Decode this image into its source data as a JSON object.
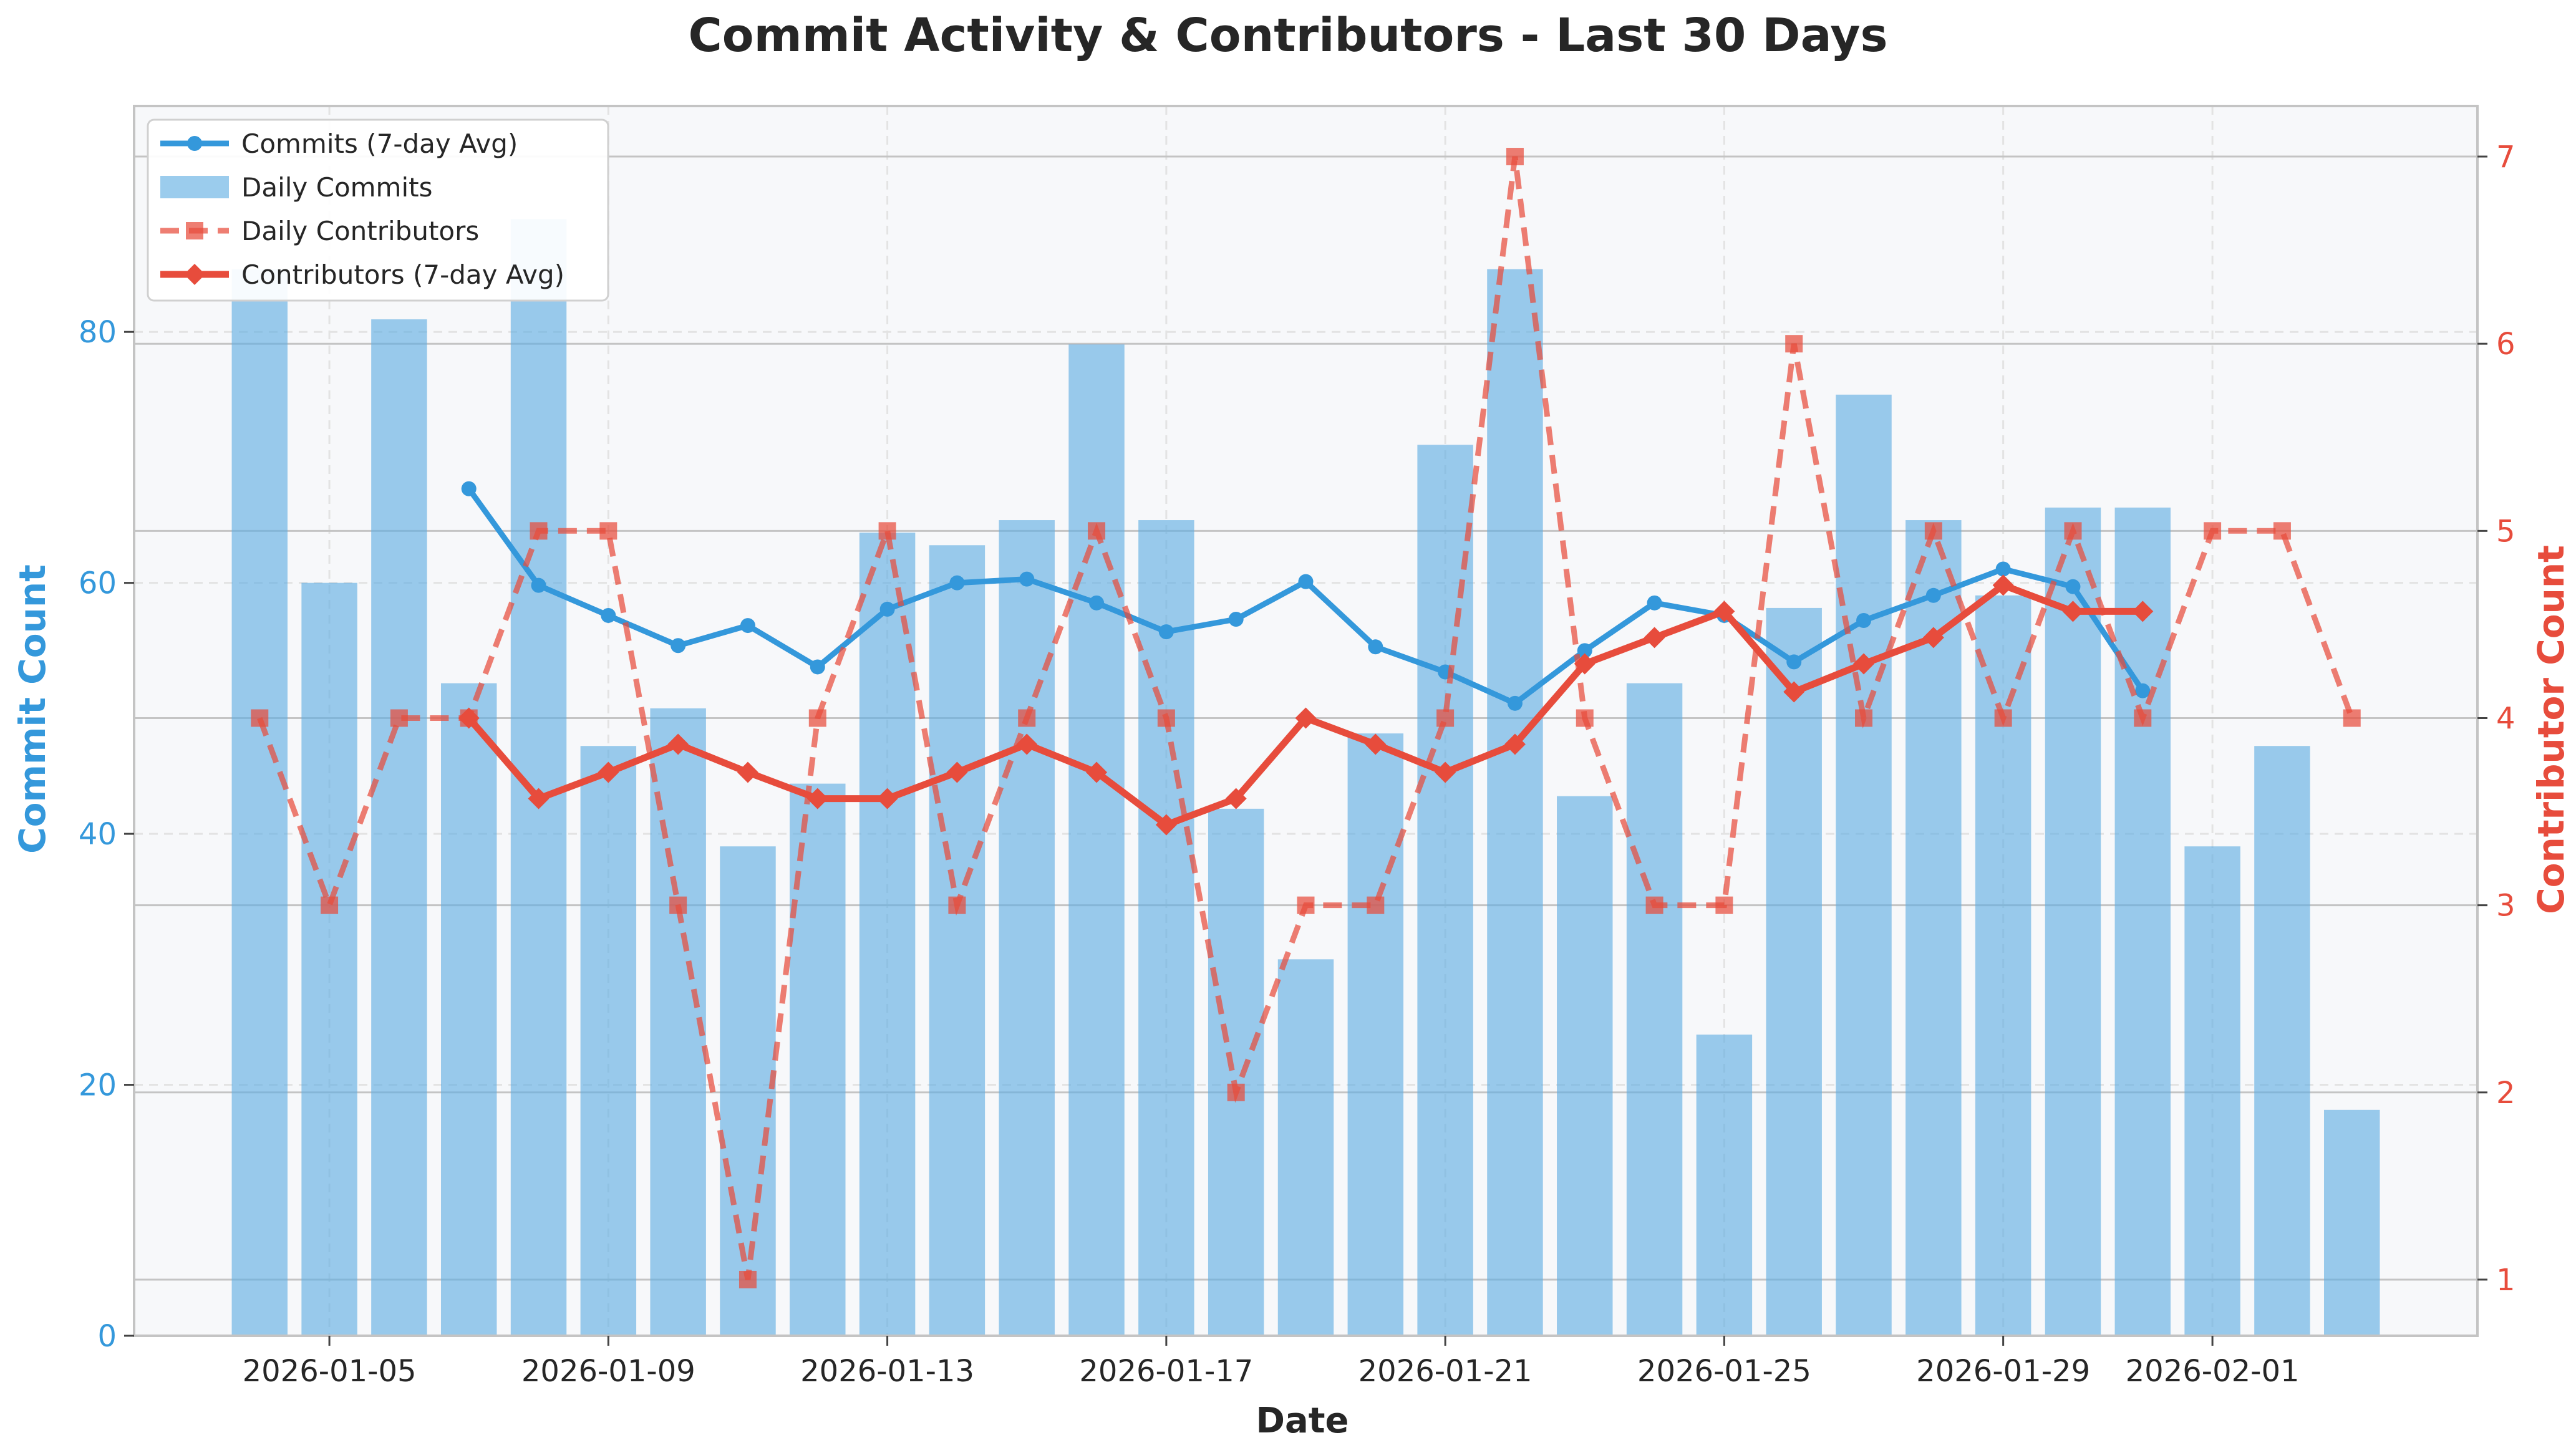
{
  "chart_data": {
    "type": "bar+line",
    "title": "Commit Activity & Contributors - Last 30 Days",
    "xlabel": "Date",
    "ylabel_left": "Commit Count",
    "ylabel_right": "Contributor Count",
    "ylim_left": [
      0,
      98
    ],
    "ylim_right": [
      0.7,
      7.27
    ],
    "y_ticks_left": [
      0,
      20,
      40,
      60,
      80
    ],
    "y_ticks_right": [
      1,
      2,
      3,
      4,
      5,
      6,
      7
    ],
    "x_tick_labels": [
      "2026-01-05",
      "2026-01-09",
      "2026-01-13",
      "2026-01-17",
      "2026-01-21",
      "2026-01-25",
      "2026-01-29",
      "2026-02-01"
    ],
    "x_tick_positions": [
      1,
      5,
      9,
      13,
      17,
      21,
      25,
      28
    ],
    "grid": true,
    "legend_position": "top-left",
    "dates": [
      "2026-01-04",
      "2026-01-05",
      "2026-01-06",
      "2026-01-07",
      "2026-01-08",
      "2026-01-09",
      "2026-01-10",
      "2026-01-11",
      "2026-01-12",
      "2026-01-13",
      "2026-01-14",
      "2026-01-15",
      "2026-01-16",
      "2026-01-17",
      "2026-01-18",
      "2026-01-19",
      "2026-01-20",
      "2026-01-21",
      "2026-01-22",
      "2026-01-23",
      "2026-01-24",
      "2026-01-25",
      "2026-01-26",
      "2026-01-27",
      "2026-01-28",
      "2026-01-29",
      "2026-01-30",
      "2026-01-31",
      "2026-02-01",
      "2026-02-02",
      "2026-02-03"
    ],
    "series": [
      {
        "name": "Daily Commits",
        "type": "bar",
        "axis": "left",
        "color": "#5dade2",
        "values": [
          85,
          60,
          81,
          52,
          89,
          47,
          50,
          39,
          44,
          64,
          63,
          65,
          79,
          65,
          42,
          30,
          48,
          71,
          85,
          43,
          52,
          24,
          58,
          75,
          65,
          59,
          66,
          66,
          39,
          47,
          18
        ]
      },
      {
        "name": "Commits (7-day Avg)",
        "type": "line",
        "axis": "left",
        "color": "#3498db",
        "values": [
          null,
          null,
          null,
          67.5,
          59.8,
          57.4,
          55.0,
          56.6,
          53.3,
          57.9,
          60.0,
          60.3,
          58.4,
          56.1,
          57.1,
          60.1,
          54.9,
          52.9,
          50.4,
          54.6,
          58.4,
          57.4,
          53.7,
          57.0,
          59.0,
          61.1,
          59.7,
          51.4,
          null,
          null,
          null
        ]
      },
      {
        "name": "Daily Contributors",
        "type": "line",
        "axis": "right",
        "color": "#e74c3c",
        "values": [
          4,
          3,
          4,
          4,
          5,
          5,
          3,
          1,
          4,
          5,
          3,
          4,
          5,
          4,
          2,
          3,
          3,
          4,
          7,
          4,
          3,
          3,
          6,
          4,
          5,
          4,
          5,
          4,
          5,
          5,
          4
        ]
      },
      {
        "name": "Contributors (7-day Avg)",
        "type": "line",
        "axis": "right",
        "color": "#e74c3c",
        "values": [
          null,
          null,
          null,
          4.0,
          3.57,
          3.71,
          3.86,
          3.71,
          3.57,
          3.57,
          3.71,
          3.86,
          3.71,
          3.43,
          3.57,
          4.0,
          3.86,
          3.71,
          3.86,
          4.29,
          4.43,
          4.57,
          4.14,
          4.29,
          4.43,
          4.71,
          4.57,
          4.57,
          null,
          null,
          null
        ]
      }
    ],
    "legend": [
      "Commits (7-day Avg)",
      "Daily Commits",
      "Daily Contributors",
      "Contributors (7-day Avg)"
    ]
  }
}
